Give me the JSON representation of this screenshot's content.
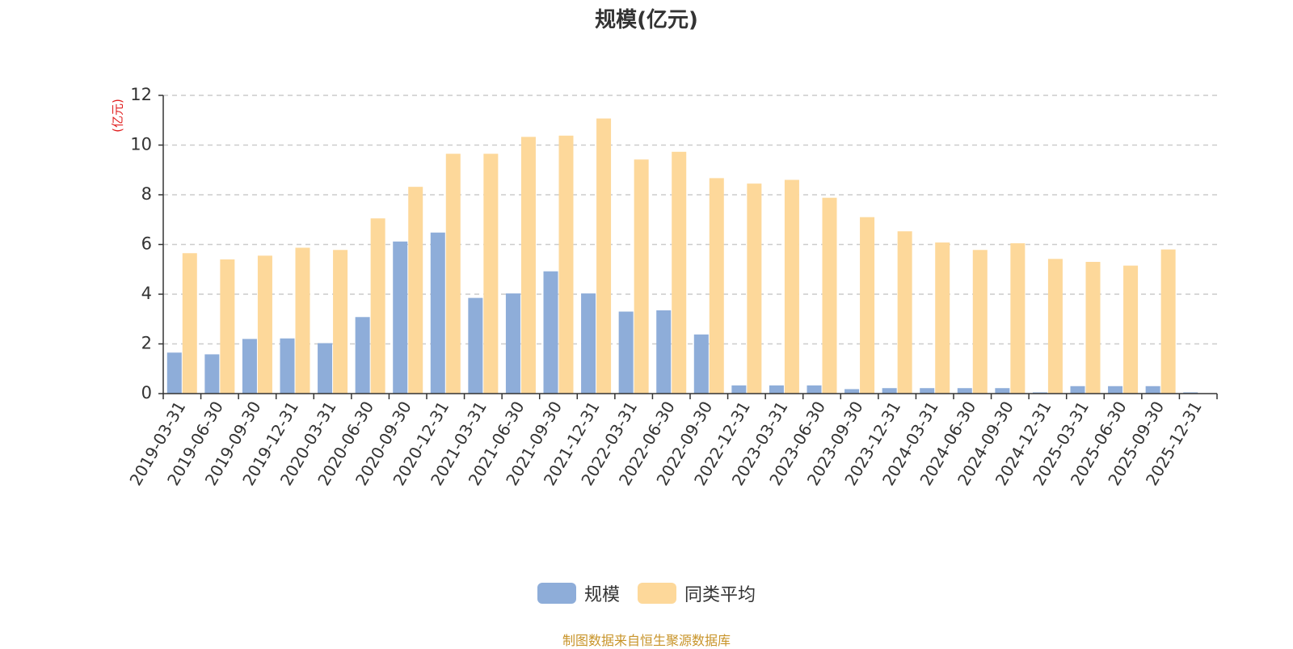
{
  "chart_data": {
    "type": "bar",
    "title": "规模(亿元)",
    "ylabel": "(亿元)",
    "ylim": [
      0,
      12
    ],
    "yticks": [
      0,
      2,
      4,
      6,
      8,
      10,
      12
    ],
    "grid": true,
    "legend_position": "bottom",
    "categories": [
      "2019-03-31",
      "2019-06-30",
      "2019-09-30",
      "2019-12-31",
      "2020-03-31",
      "2020-06-30",
      "2020-09-30",
      "2020-12-31",
      "2021-03-31",
      "2021-06-30",
      "2021-09-30",
      "2021-12-31",
      "2022-03-31",
      "2022-06-30",
      "2022-09-30",
      "2022-12-31",
      "2023-03-31",
      "2023-06-30",
      "2023-09-30",
      "2023-12-31",
      "2024-03-31",
      "2024-06-30",
      "2024-09-30",
      "2024-12-31",
      "2025-03-31",
      "2025-06-30",
      "2025-09-30",
      "2025-12-31"
    ],
    "series": [
      {
        "name": "规模",
        "color": "#8eadd9",
        "values": [
          1.65,
          1.58,
          2.2,
          2.22,
          2.03,
          3.08,
          6.12,
          6.48,
          3.85,
          4.03,
          4.92,
          4.03,
          3.3,
          3.35,
          2.38,
          0.33,
          0.33,
          0.33,
          0.18,
          0.22,
          0.22,
          0.22,
          0.22,
          0.05,
          0.3,
          0.3,
          0.3,
          0.05
        ]
      },
      {
        "name": "同类平均",
        "color": "#fdd89a",
        "values": [
          5.65,
          5.4,
          5.55,
          5.87,
          5.78,
          7.05,
          8.32,
          9.65,
          9.65,
          10.33,
          10.38,
          11.07,
          9.42,
          9.73,
          8.67,
          8.45,
          8.6,
          7.88,
          7.1,
          6.53,
          6.08,
          5.78,
          6.05,
          5.42,
          5.3,
          5.15,
          5.8,
          null
        ]
      }
    ]
  },
  "source_note": "制图数据来自恒生聚源数据库"
}
